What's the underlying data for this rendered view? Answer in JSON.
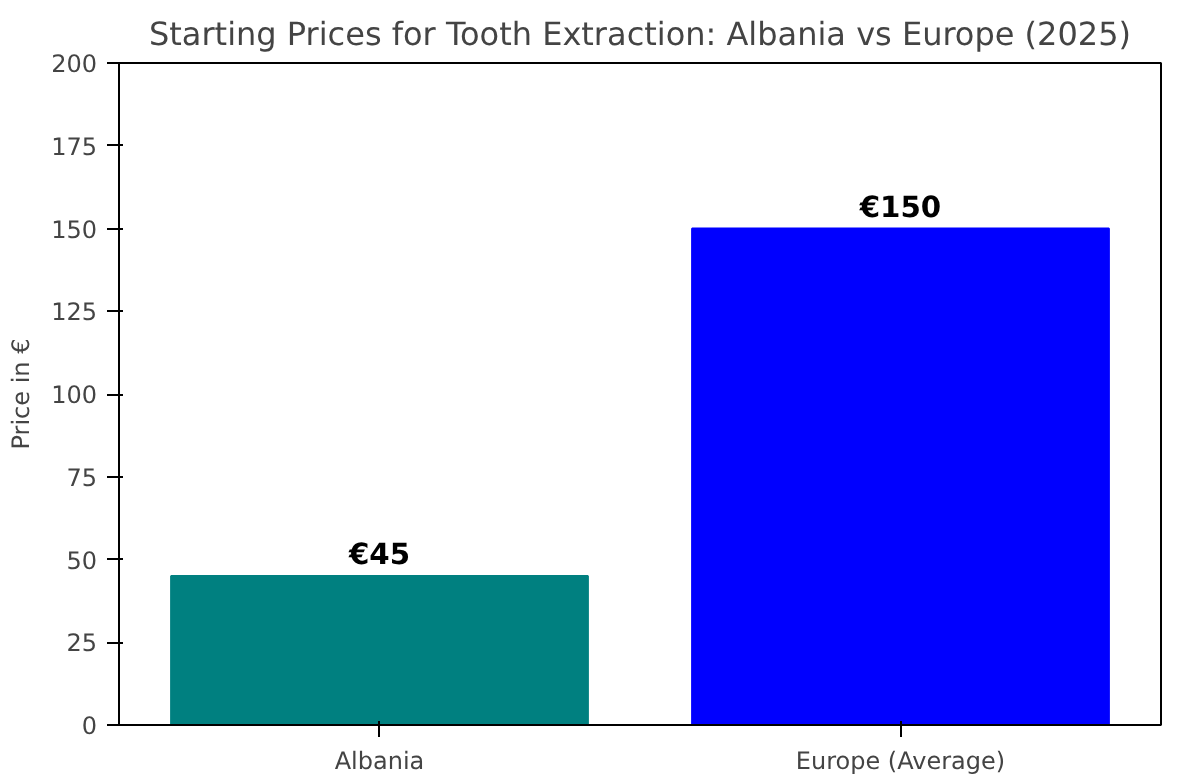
{
  "chart_data": {
    "type": "bar",
    "title": "Starting Prices for Tooth Extraction: Albania vs Europe (2025)",
    "ylabel": "Price in €",
    "categories": [
      "Albania",
      "Europe (Average)"
    ],
    "values": [
      45,
      150
    ],
    "colors": [
      "#008080",
      "#0000ff"
    ],
    "value_labels": [
      "€45",
      "€150"
    ],
    "ylim": [
      0,
      200
    ],
    "yticks": [
      0,
      25,
      50,
      75,
      100,
      125,
      150,
      175,
      200
    ],
    "grid": false
  }
}
